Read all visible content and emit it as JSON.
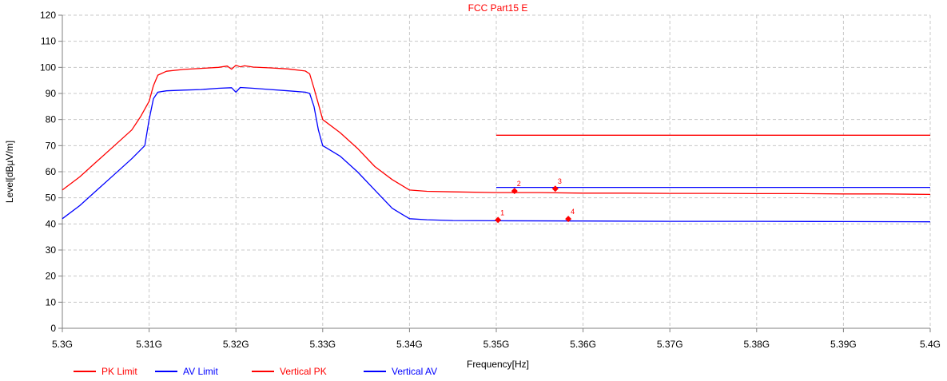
{
  "chart_data": {
    "type": "line",
    "title": "FCC Part15 E",
    "xlabel": "Frequency[Hz]",
    "ylabel": "Level[dBµV/m]",
    "xlim": [
      5.3,
      5.4
    ],
    "ylim": [
      0,
      120
    ],
    "x_ticks": [
      5.3,
      5.31,
      5.32,
      5.33,
      5.34,
      5.35,
      5.36,
      5.37,
      5.38,
      5.39,
      5.4
    ],
    "x_tick_labels": [
      "5.3G",
      "5.31G",
      "5.32G",
      "5.33G",
      "5.34G",
      "5.35G",
      "5.36G",
      "5.37G",
      "5.38G",
      "5.39G",
      "5.4G"
    ],
    "y_ticks": [
      0,
      10,
      20,
      30,
      40,
      50,
      60,
      70,
      80,
      90,
      100,
      110,
      120
    ],
    "y_tick_labels": [
      "0",
      "10",
      "20",
      "30",
      "40",
      "50",
      "60",
      "70",
      "80",
      "90",
      "100",
      "110",
      "120"
    ],
    "grid": true,
    "legend_position": "bottom-left",
    "colors": {
      "red": "#ff0000",
      "blue": "#0000ff",
      "title": "#ff0000",
      "grid": "#c8c8c8"
    },
    "series": [
      {
        "name": "PK Limit",
        "color": "#ff0000",
        "x": [
          5.35,
          5.4
        ],
        "y": [
          74,
          74
        ]
      },
      {
        "name": "AV Limit",
        "color": "#0000ff",
        "x": [
          5.35,
          5.4
        ],
        "y": [
          54,
          54
        ]
      },
      {
        "name": "Vertical PK",
        "color": "#ff0000",
        "x": [
          5.3,
          5.302,
          5.304,
          5.306,
          5.308,
          5.309,
          5.31,
          5.3105,
          5.311,
          5.312,
          5.314,
          5.316,
          5.318,
          5.319,
          5.3195,
          5.32,
          5.3205,
          5.321,
          5.322,
          5.324,
          5.326,
          5.328,
          5.3285,
          5.329,
          5.3295,
          5.33,
          5.332,
          5.334,
          5.336,
          5.338,
          5.339,
          5.34,
          5.342,
          5.345,
          5.35,
          5.355,
          5.36,
          5.365,
          5.37,
          5.375,
          5.38,
          5.385,
          5.39,
          5.395,
          5.4
        ],
        "y": [
          53,
          58,
          64,
          70,
          76,
          81,
          87,
          93,
          97,
          98.5,
          99.2,
          99.6,
          100,
          100.5,
          99.3,
          100.8,
          100.2,
          100.6,
          100.1,
          99.8,
          99.4,
          98.6,
          97.5,
          92,
          86,
          80,
          75,
          69,
          62,
          57,
          55,
          53,
          52.5,
          52.3,
          52,
          52,
          51.8,
          51.8,
          51.7,
          51.7,
          51.6,
          51.6,
          51.5,
          51.5,
          51.3
        ]
      },
      {
        "name": "Vertical AV",
        "color": "#0000ff",
        "x": [
          5.3,
          5.302,
          5.304,
          5.306,
          5.308,
          5.3095,
          5.31,
          5.3105,
          5.311,
          5.312,
          5.314,
          5.316,
          5.318,
          5.3195,
          5.32,
          5.3205,
          5.322,
          5.324,
          5.326,
          5.328,
          5.3285,
          5.329,
          5.3295,
          5.33,
          5.332,
          5.334,
          5.336,
          5.338,
          5.339,
          5.34,
          5.342,
          5.345,
          5.35,
          5.36,
          5.37,
          5.38,
          5.39,
          5.4
        ],
        "y": [
          42,
          47,
          53,
          59,
          65,
          70,
          80,
          88,
          90.5,
          91,
          91.3,
          91.5,
          92,
          92.2,
          90.5,
          92.3,
          92,
          91.5,
          91,
          90.5,
          90,
          85,
          76,
          70,
          66,
          60,
          53,
          46,
          44,
          42,
          41.6,
          41.3,
          41.2,
          41.1,
          41,
          41,
          40.9,
          40.8
        ]
      }
    ],
    "markers": [
      {
        "label": "1",
        "x": 5.3502,
        "y": 41.5
      },
      {
        "label": "2",
        "x": 5.3521,
        "y": 52.6
      },
      {
        "label": "3",
        "x": 5.3568,
        "y": 53.5
      },
      {
        "label": "4",
        "x": 5.3583,
        "y": 41.9
      }
    ]
  }
}
